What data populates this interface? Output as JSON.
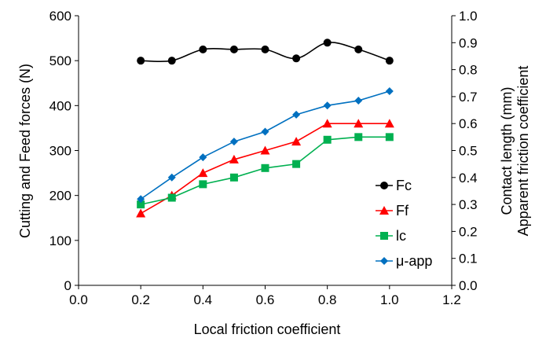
{
  "chart_data": {
    "type": "line",
    "title": "",
    "xlabel": "Local friction coefficient",
    "ylabel": "Cutting and Feed forces (N)",
    "y2labels": [
      "Contact length (mm)",
      "Apparent friction coefficient"
    ],
    "xlim": [
      0.0,
      1.2
    ],
    "ylim": [
      0,
      600
    ],
    "y2lim": [
      0.0,
      1.0
    ],
    "xticks": [
      "0.0",
      "0.2",
      "0.4",
      "0.6",
      "0.8",
      "1.0",
      "1.2"
    ],
    "yticks": [
      "0",
      "100",
      "200",
      "300",
      "400",
      "500",
      "600"
    ],
    "y2ticks": [
      "0.0",
      "0.1",
      "0.2",
      "0.3",
      "0.4",
      "0.5",
      "0.6",
      "0.7",
      "0.8",
      "0.9",
      "1.0"
    ],
    "grid": false,
    "legend_position": "right",
    "series": [
      {
        "name": "Fc",
        "axis": "left",
        "color": "#000000",
        "marker": "circle",
        "x": [
          0.2,
          0.3,
          0.4,
          0.5,
          0.6,
          0.7,
          0.8,
          0.9,
          1.0
        ],
        "y": [
          500,
          500,
          525,
          525,
          525,
          505,
          540,
          525,
          500
        ]
      },
      {
        "name": "Ff",
        "axis": "left",
        "color": "#ff0000",
        "marker": "triangle",
        "x": [
          0.2,
          0.3,
          0.4,
          0.5,
          0.6,
          0.7,
          0.8,
          0.9,
          1.0
        ],
        "y": [
          160,
          200,
          250,
          280,
          300,
          320,
          360,
          360,
          360
        ]
      },
      {
        "name": "lc",
        "axis": "right",
        "color": "#00b050",
        "marker": "square",
        "x": [
          0.2,
          0.3,
          0.4,
          0.5,
          0.6,
          0.7,
          0.8,
          0.9,
          1.0
        ],
        "y": [
          0.3,
          0.325,
          0.375,
          0.4,
          0.435,
          0.45,
          0.54,
          0.55,
          0.55
        ]
      },
      {
        "name": "μ-app",
        "axis": "right",
        "color": "#0070c0",
        "marker": "diamond",
        "x": [
          0.2,
          0.3,
          0.4,
          0.5,
          0.6,
          0.7,
          0.8,
          0.9,
          1.0
        ],
        "y": [
          0.32,
          0.4,
          0.475,
          0.533,
          0.57,
          0.633,
          0.667,
          0.685,
          0.72
        ]
      }
    ]
  }
}
